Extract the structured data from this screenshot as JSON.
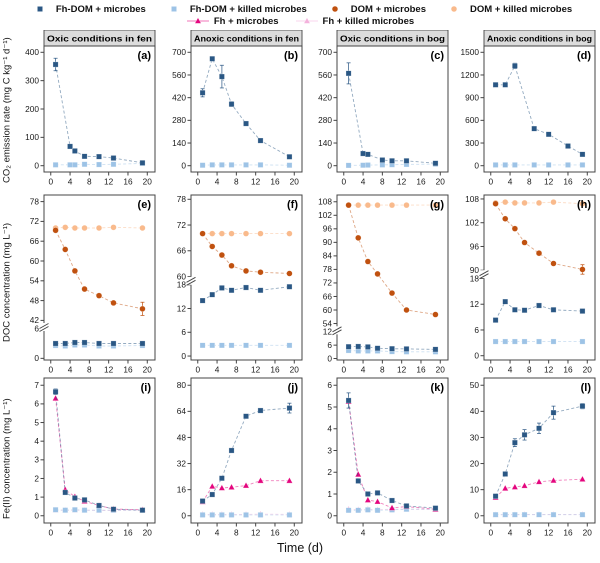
{
  "chart_data": {
    "type": "line",
    "figure": {
      "x_label": "Time (d)",
      "x_ticks": [
        0,
        4,
        8,
        12,
        16,
        20
      ],
      "xlim": [
        0,
        20
      ],
      "default_x": [
        1,
        3,
        5,
        7,
        10,
        13,
        19
      ],
      "grid": false,
      "legend_position": "top"
    },
    "rows": [
      {
        "ylabel": "CO₂ emission rate (mg C kg⁻¹ d⁻¹)"
      },
      {
        "ylabel": "DOC concentration (mg L⁻¹)"
      },
      {
        "ylabel": "Fe(II) concentration (mg L⁻¹)"
      }
    ],
    "legend": {
      "rows": [
        [
          {
            "key": "fhdom_microbes",
            "label": "Fh-DOM + microbes"
          },
          {
            "key": "fhdom_killed",
            "label": "Fh-DOM + killed microbes"
          },
          {
            "key": "dom_microbes",
            "label": "DOM + microbes"
          },
          {
            "key": "dom_killed",
            "label": "DOM + killed microbes"
          }
        ],
        [
          {
            "key": "fh_microbes",
            "label": "Fh + microbes"
          },
          {
            "key": "fh_killed",
            "label": "Fh + killed microbes"
          }
        ]
      ]
    },
    "series_styles": {
      "fhdom_microbes": {
        "label": "Fh-DOM + microbes",
        "color": "#2A5784",
        "marker": "square"
      },
      "fhdom_killed": {
        "label": "Fh-DOM + killed microbes",
        "color": "#9DC3E6",
        "marker": "square"
      },
      "dom_microbes": {
        "label": "DOM + microbes",
        "color": "#C0510F",
        "marker": "circle"
      },
      "dom_killed": {
        "label": "DOM + killed microbes",
        "color": "#F9BA8C",
        "marker": "circle"
      },
      "fh_microbes": {
        "label": "Fh + microbes",
        "color": "#E4067E",
        "marker": "triangle"
      },
      "fh_killed": {
        "label": "Fh + killed microbes",
        "color": "#F4B1DC",
        "marker": "triangle"
      }
    },
    "header_style": {
      "fill": "#DCDCDC",
      "border": "#444444"
    },
    "panels": [
      {
        "id": "a",
        "letter": "(a)",
        "header": "Oxic conditions in fen",
        "ylim": [
          0,
          400
        ],
        "yticks": [
          0,
          100,
          200,
          300,
          400
        ],
        "series": [
          {
            "key": "fhdom_killed",
            "x": [
              1,
              4,
              5,
              7,
              10,
              13,
              19
            ],
            "y": [
              3,
              3,
              3,
              5,
              4,
              5,
              8
            ]
          },
          {
            "key": "fhdom_microbes",
            "x": [
              1,
              4,
              5,
              7,
              10,
              13,
              19
            ],
            "y": [
              357,
              68,
              52,
              33,
              32,
              27,
              10
            ],
            "err": [
              22,
              0,
              0,
              0,
              0,
              4,
              0
            ]
          }
        ]
      },
      {
        "id": "b",
        "letter": "(b)",
        "header": "Anoxic conditions in fen",
        "ylim": [
          0,
          700
        ],
        "yticks": [
          0,
          140,
          280,
          420,
          560,
          700
        ],
        "series": [
          {
            "key": "fhdom_killed",
            "y": [
              3,
              5,
              5,
              5,
              5,
              5,
              3
            ]
          },
          {
            "key": "fhdom_microbes",
            "y": [
              450,
              660,
              550,
              380,
              260,
              155,
              55
            ],
            "err": [
              25,
              12,
              70,
              15,
              10,
              0,
              0
            ]
          }
        ]
      },
      {
        "id": "c",
        "letter": "(c)",
        "header": "Oxic conditions in bog",
        "ylim": [
          0,
          700
        ],
        "yticks": [
          0,
          140,
          280,
          420,
          560,
          700
        ],
        "series": [
          {
            "key": "fhdom_killed",
            "x": [
              1,
              4,
              5,
              8,
              10,
              13,
              19
            ],
            "y": [
              2,
              3,
              4,
              5,
              6,
              8,
              10
            ]
          },
          {
            "key": "fhdom_microbes",
            "x": [
              1,
              4,
              5,
              8,
              10,
              13,
              19
            ],
            "y": [
              570,
              75,
              70,
              35,
              30,
              30,
              15
            ],
            "err": [
              65,
              0,
              0,
              0,
              0,
              0,
              8
            ]
          }
        ]
      },
      {
        "id": "d",
        "letter": "(d)",
        "header": "Anoxic conditions in bog",
        "ylim": [
          0,
          1500
        ],
        "yticks": [
          0,
          300,
          600,
          900,
          1200,
          1500
        ],
        "series": [
          {
            "key": "fhdom_killed",
            "x": [
              1,
              3,
              5,
              9,
              12,
              16,
              19
            ],
            "y": [
              10,
              10,
              10,
              10,
              10,
              10,
              10
            ]
          },
          {
            "key": "fhdom_microbes",
            "x": [
              1,
              3,
              5,
              9,
              12,
              16,
              19
            ],
            "y": [
              1070,
              1070,
              1320,
              490,
              415,
              260,
              150
            ],
            "err": [
              0,
              0,
              35,
              0,
              0,
              0,
              0
            ]
          }
        ]
      },
      {
        "id": "e",
        "letter": "(e)",
        "segments": [
          {
            "ylim": [
              42,
              78
            ],
            "ticks": [
              42,
              48,
              54,
              60,
              66,
              72,
              78
            ],
            "frac": 0.8
          },
          {
            "ylim": [
              0,
              6
            ],
            "ticks": [
              0,
              6
            ],
            "frac": 0.2
          }
        ],
        "series": [
          {
            "key": "fhdom_killed",
            "y": [
              2.6,
              2.5,
              2.7,
              2.7,
              2.5,
              2.5,
              2.6
            ]
          },
          {
            "key": "fhdom_microbes",
            "y": [
              3.0,
              3.0,
              3.2,
              3.2,
              3.0,
              3.0,
              3.0
            ]
          },
          {
            "key": "dom_killed",
            "y": [
              70,
              70.2,
              70,
              70,
              70,
              70.2,
              70
            ]
          },
          {
            "key": "dom_microbes",
            "y": [
              69.3,
              63.5,
              57,
              51.5,
              49.5,
              47.3,
              45.5
            ],
            "err": [
              0,
              0,
              0,
              0,
              0,
              0,
              2
            ]
          }
        ]
      },
      {
        "id": "f",
        "letter": "(f)",
        "segments": [
          {
            "ylim": [
              60,
              78
            ],
            "ticks": [
              60,
              66,
              72,
              78
            ],
            "frac": 0.52
          },
          {
            "ylim": [
              0,
              18
            ],
            "ticks": [
              0,
              6,
              12,
              18
            ],
            "frac": 0.48
          }
        ],
        "series": [
          {
            "key": "fhdom_killed",
            "y": [
              2.7,
              2.7,
              2.7,
              2.7,
              2.7,
              2.7,
              2.7
            ]
          },
          {
            "key": "fhdom_microbes",
            "y": [
              14,
              15.5,
              17.2,
              16.6,
              17.3,
              16.6,
              17.5
            ]
          },
          {
            "key": "dom_killed",
            "y": [
              70,
              70,
              70,
              70,
              70,
              70,
              70
            ]
          },
          {
            "key": "dom_microbes",
            "y": [
              70,
              67,
              65,
              62.5,
              61.3,
              61,
              60.7
            ]
          }
        ]
      },
      {
        "id": "g",
        "letter": "(g)",
        "segments": [
          {
            "ylim": [
              54,
              108
            ],
            "ticks": [
              54,
              60,
              66,
              72,
              78,
              84,
              90,
              96,
              102,
              108
            ],
            "frac": 0.82
          },
          {
            "ylim": [
              0,
              12
            ],
            "ticks": [
              0,
              6,
              12
            ],
            "frac": 0.18
          }
        ],
        "series": [
          {
            "key": "fhdom_killed",
            "y": [
              3.6,
              3.4,
              3.4,
              3.4,
              3.1,
              3.0,
              3.0
            ]
          },
          {
            "key": "fhdom_microbes",
            "y": [
              5.3,
              5.4,
              5.2,
              4.6,
              4.4,
              4.3,
              4.1
            ]
          },
          {
            "key": "dom_killed",
            "y": [
              106.5,
              106.5,
              106.5,
              106.5,
              106.5,
              106.5,
              106.5
            ]
          },
          {
            "key": "dom_microbes",
            "y": [
              106.5,
              92,
              81.5,
              76,
              67.5,
              60,
              58
            ]
          }
        ]
      },
      {
        "id": "h",
        "letter": "(h)",
        "segments": [
          {
            "ylim": [
              90,
              108
            ],
            "ticks": [
              90,
              96,
              102,
              108
            ],
            "frac": 0.48
          },
          {
            "ylim": [
              0,
              18
            ],
            "ticks": [
              0,
              6,
              12,
              18
            ],
            "frac": 0.52
          }
        ],
        "series": [
          {
            "key": "fhdom_killed",
            "y": [
              3.3,
              3.3,
              3.3,
              3.3,
              3.3,
              3.3,
              3.3
            ]
          },
          {
            "key": "fhdom_microbes",
            "y": [
              8.3,
              12.6,
              10.7,
              10.6,
              11.7,
              10.7,
              10.4
            ]
          },
          {
            "key": "dom_killed",
            "y": [
              107,
              107.2,
              107,
              107,
              107,
              107.2,
              106.8
            ]
          },
          {
            "key": "dom_microbes",
            "y": [
              106.8,
              103,
              100.5,
              97,
              94.3,
              91.7,
              90.2
            ],
            "err": [
              0,
              0,
              0,
              0,
              0,
              0,
              1.2
            ]
          }
        ]
      },
      {
        "id": "i",
        "letter": "(i)",
        "ylim": [
          0,
          7
        ],
        "yticks": [
          0,
          1,
          2,
          3,
          4,
          5,
          6,
          7
        ],
        "series": [
          {
            "key": "fh_killed",
            "y": [
              0.3,
              0.3,
              0.3,
              0.3,
              0.28,
              0.28,
              0.3
            ]
          },
          {
            "key": "fhdom_killed",
            "y": [
              0.32,
              0.3,
              0.32,
              0.3,
              0.3,
              0.3,
              0.3
            ]
          },
          {
            "key": "fh_microbes",
            "y": [
              6.3,
              1.4,
              1.02,
              0.78,
              0.55,
              0.36,
              0.32
            ]
          },
          {
            "key": "fhdom_microbes",
            "y": [
              6.65,
              1.25,
              0.95,
              0.85,
              0.55,
              0.35,
              0.3
            ],
            "err": [
              0.15,
              0,
              0,
              0,
              0,
              0,
              0
            ]
          }
        ]
      },
      {
        "id": "j",
        "letter": "(j)",
        "ylim": [
          0,
          80
        ],
        "yticks": [
          0,
          16,
          32,
          48,
          64,
          80
        ],
        "series": [
          {
            "key": "fh_killed",
            "y": [
              0.8,
              0.8,
              0.8,
              0.8,
              0.8,
              1,
              0.8
            ]
          },
          {
            "key": "fhdom_killed",
            "y": [
              0.5,
              0.5,
              0.5,
              0.5,
              0.5,
              0.5,
              0.5
            ]
          },
          {
            "key": "fh_microbes",
            "y": [
              8.5,
              18,
              17,
              17.5,
              18.5,
              21.5,
              21.5
            ]
          },
          {
            "key": "fhdom_microbes",
            "y": [
              9,
              13,
              23,
              40,
              61,
              64.5,
              66
            ],
            "err": [
              0,
              0,
              0,
              0,
              0,
              0,
              3
            ]
          }
        ]
      },
      {
        "id": "k",
        "letter": "(k)",
        "ylim": [
          0,
          6
        ],
        "yticks": [
          0,
          1,
          2,
          3,
          4,
          5,
          6
        ],
        "series": [
          {
            "key": "fh_killed",
            "y": [
              0.3,
              0.28,
              0.3,
              0.28,
              0.3,
              0.3,
              0.28
            ]
          },
          {
            "key": "fhdom_killed",
            "y": [
              0.25,
              0.25,
              0.27,
              0.25,
              0.27,
              0.3,
              0.3
            ]
          },
          {
            "key": "fh_microbes",
            "y": [
              5.25,
              1.9,
              0.72,
              0.65,
              0.36,
              0.42,
              0.3
            ]
          },
          {
            "key": "fhdom_microbes",
            "y": [
              5.3,
              1.6,
              1.0,
              1.05,
              0.7,
              0.45,
              0.35
            ],
            "err": [
              0.35,
              0,
              0,
              0,
              0,
              0,
              0
            ]
          }
        ]
      },
      {
        "id": "l",
        "letter": "(l)",
        "ylim": [
          0,
          50
        ],
        "yticks": [
          0,
          10,
          20,
          30,
          40,
          50
        ],
        "series": [
          {
            "key": "fh_killed",
            "y": [
              0.4,
              0.4,
              0.4,
              0.5,
              0.5,
              0.5,
              0.5
            ]
          },
          {
            "key": "fhdom_killed",
            "y": [
              0.4,
              0.4,
              0.4,
              0.4,
              0.4,
              0.4,
              0.4
            ]
          },
          {
            "key": "fh_microbes",
            "y": [
              7,
              10.5,
              11,
              11.5,
              13,
              13.5,
              14
            ]
          },
          {
            "key": "fhdom_microbes",
            "y": [
              7.5,
              16,
              28,
              31,
              33.5,
              39.5,
              42
            ],
            "err": [
              0.8,
              0,
              1.5,
              2,
              2,
              2.5,
              1
            ]
          }
        ]
      }
    ]
  }
}
